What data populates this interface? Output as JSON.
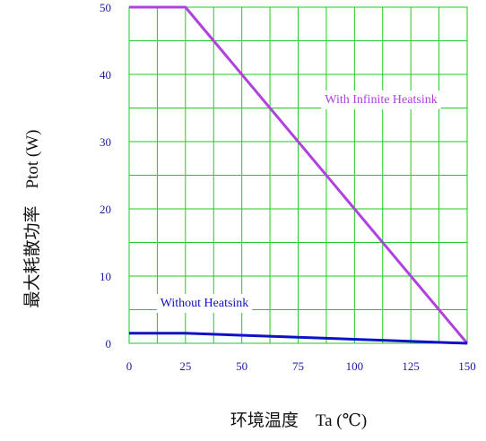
{
  "chart_data": {
    "type": "line",
    "xlabel": "环境温度　Ta (℃)",
    "ylabel": "最大耗散功率　Ptot (W)",
    "xlim": [
      0,
      150
    ],
    "ylim": [
      0,
      50
    ],
    "x_ticks": [
      0,
      25,
      50,
      75,
      100,
      125,
      150
    ],
    "y_ticks": [
      0,
      10,
      20,
      30,
      40,
      50
    ],
    "grid": true,
    "grid_color": "#22c822",
    "tick_color": "#1a1aa0",
    "series": [
      {
        "name": "With Infinite Heatsink",
        "color": "#b040e0",
        "points": [
          [
            0,
            50
          ],
          [
            25,
            50
          ],
          [
            150,
            0
          ]
        ]
      },
      {
        "name": "Without Heatsink",
        "color": "#1010c8",
        "points": [
          [
            0,
            1.5
          ],
          [
            25,
            1.5
          ],
          [
            150,
            0
          ]
        ]
      }
    ]
  }
}
